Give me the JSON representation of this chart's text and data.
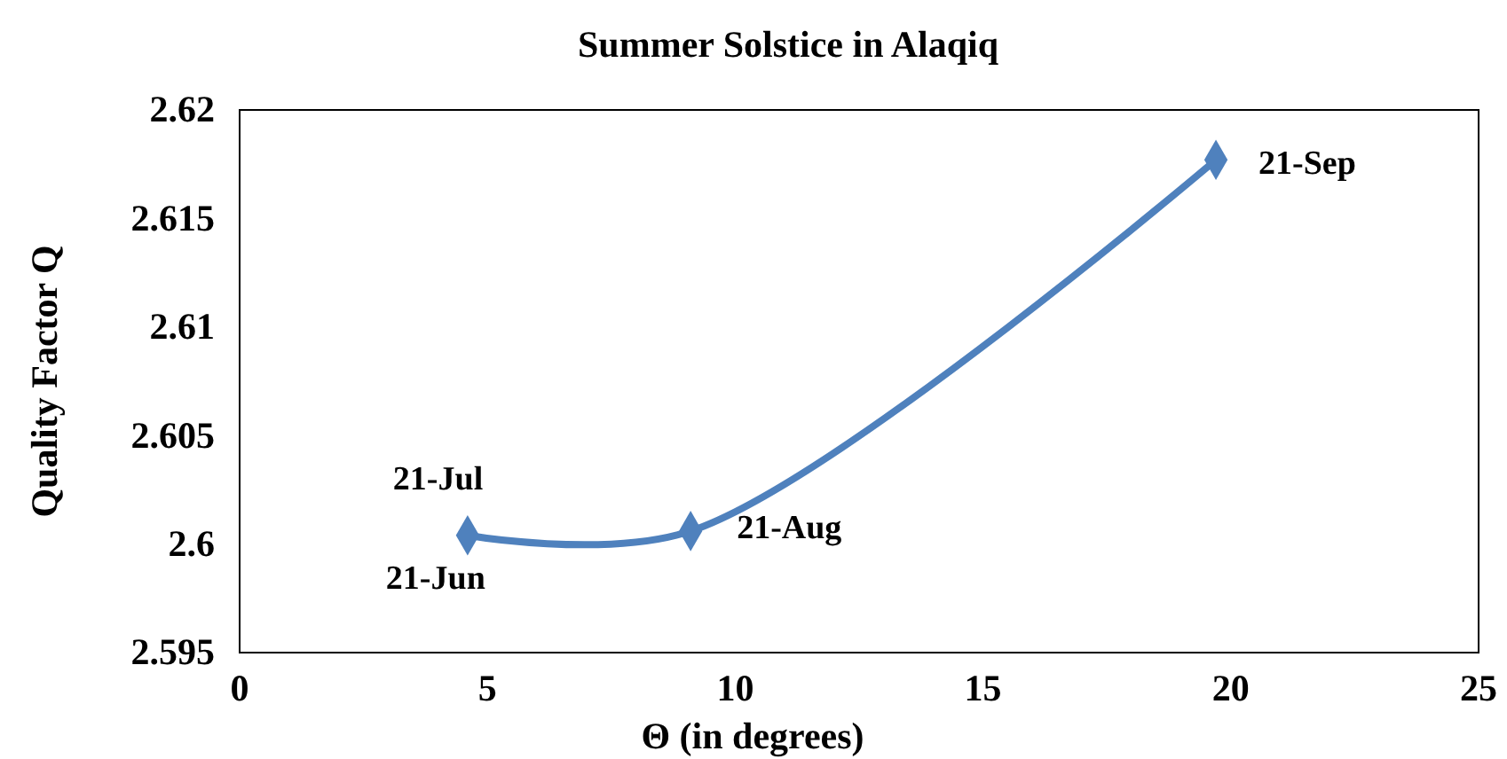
{
  "chart_data": {
    "type": "line",
    "title": "Summer Solstice in Alaqiq",
    "xlabel": "Θ (in degrees)",
    "ylabel": "Quality Factor  Q",
    "x": [
      4.6,
      9.1,
      19.7
    ],
    "series": [
      {
        "color": "#4f81bd",
        "values": [
          2.6004,
          2.6006,
          2.6177
        ]
      }
    ],
    "xlim": [
      0,
      25
    ],
    "xticks": [
      0,
      5,
      10,
      15,
      20,
      25
    ],
    "ylim": [
      2.595,
      2.62
    ],
    "yticks": [
      2.595,
      2.6,
      2.605,
      2.61,
      2.615,
      2.62
    ],
    "grid": false,
    "marker": "diamond",
    "line_style": "solid",
    "annotations": [
      {
        "text": "21-Jul",
        "x": 4.6,
        "y": 2.6004
      },
      {
        "text": "21-Jun",
        "x": 4.6,
        "y": 2.6004
      },
      {
        "text": "21-Aug",
        "x": 9.1,
        "y": 2.6006
      },
      {
        "text": "21-Sep",
        "x": 19.7,
        "y": 2.6177
      }
    ]
  }
}
